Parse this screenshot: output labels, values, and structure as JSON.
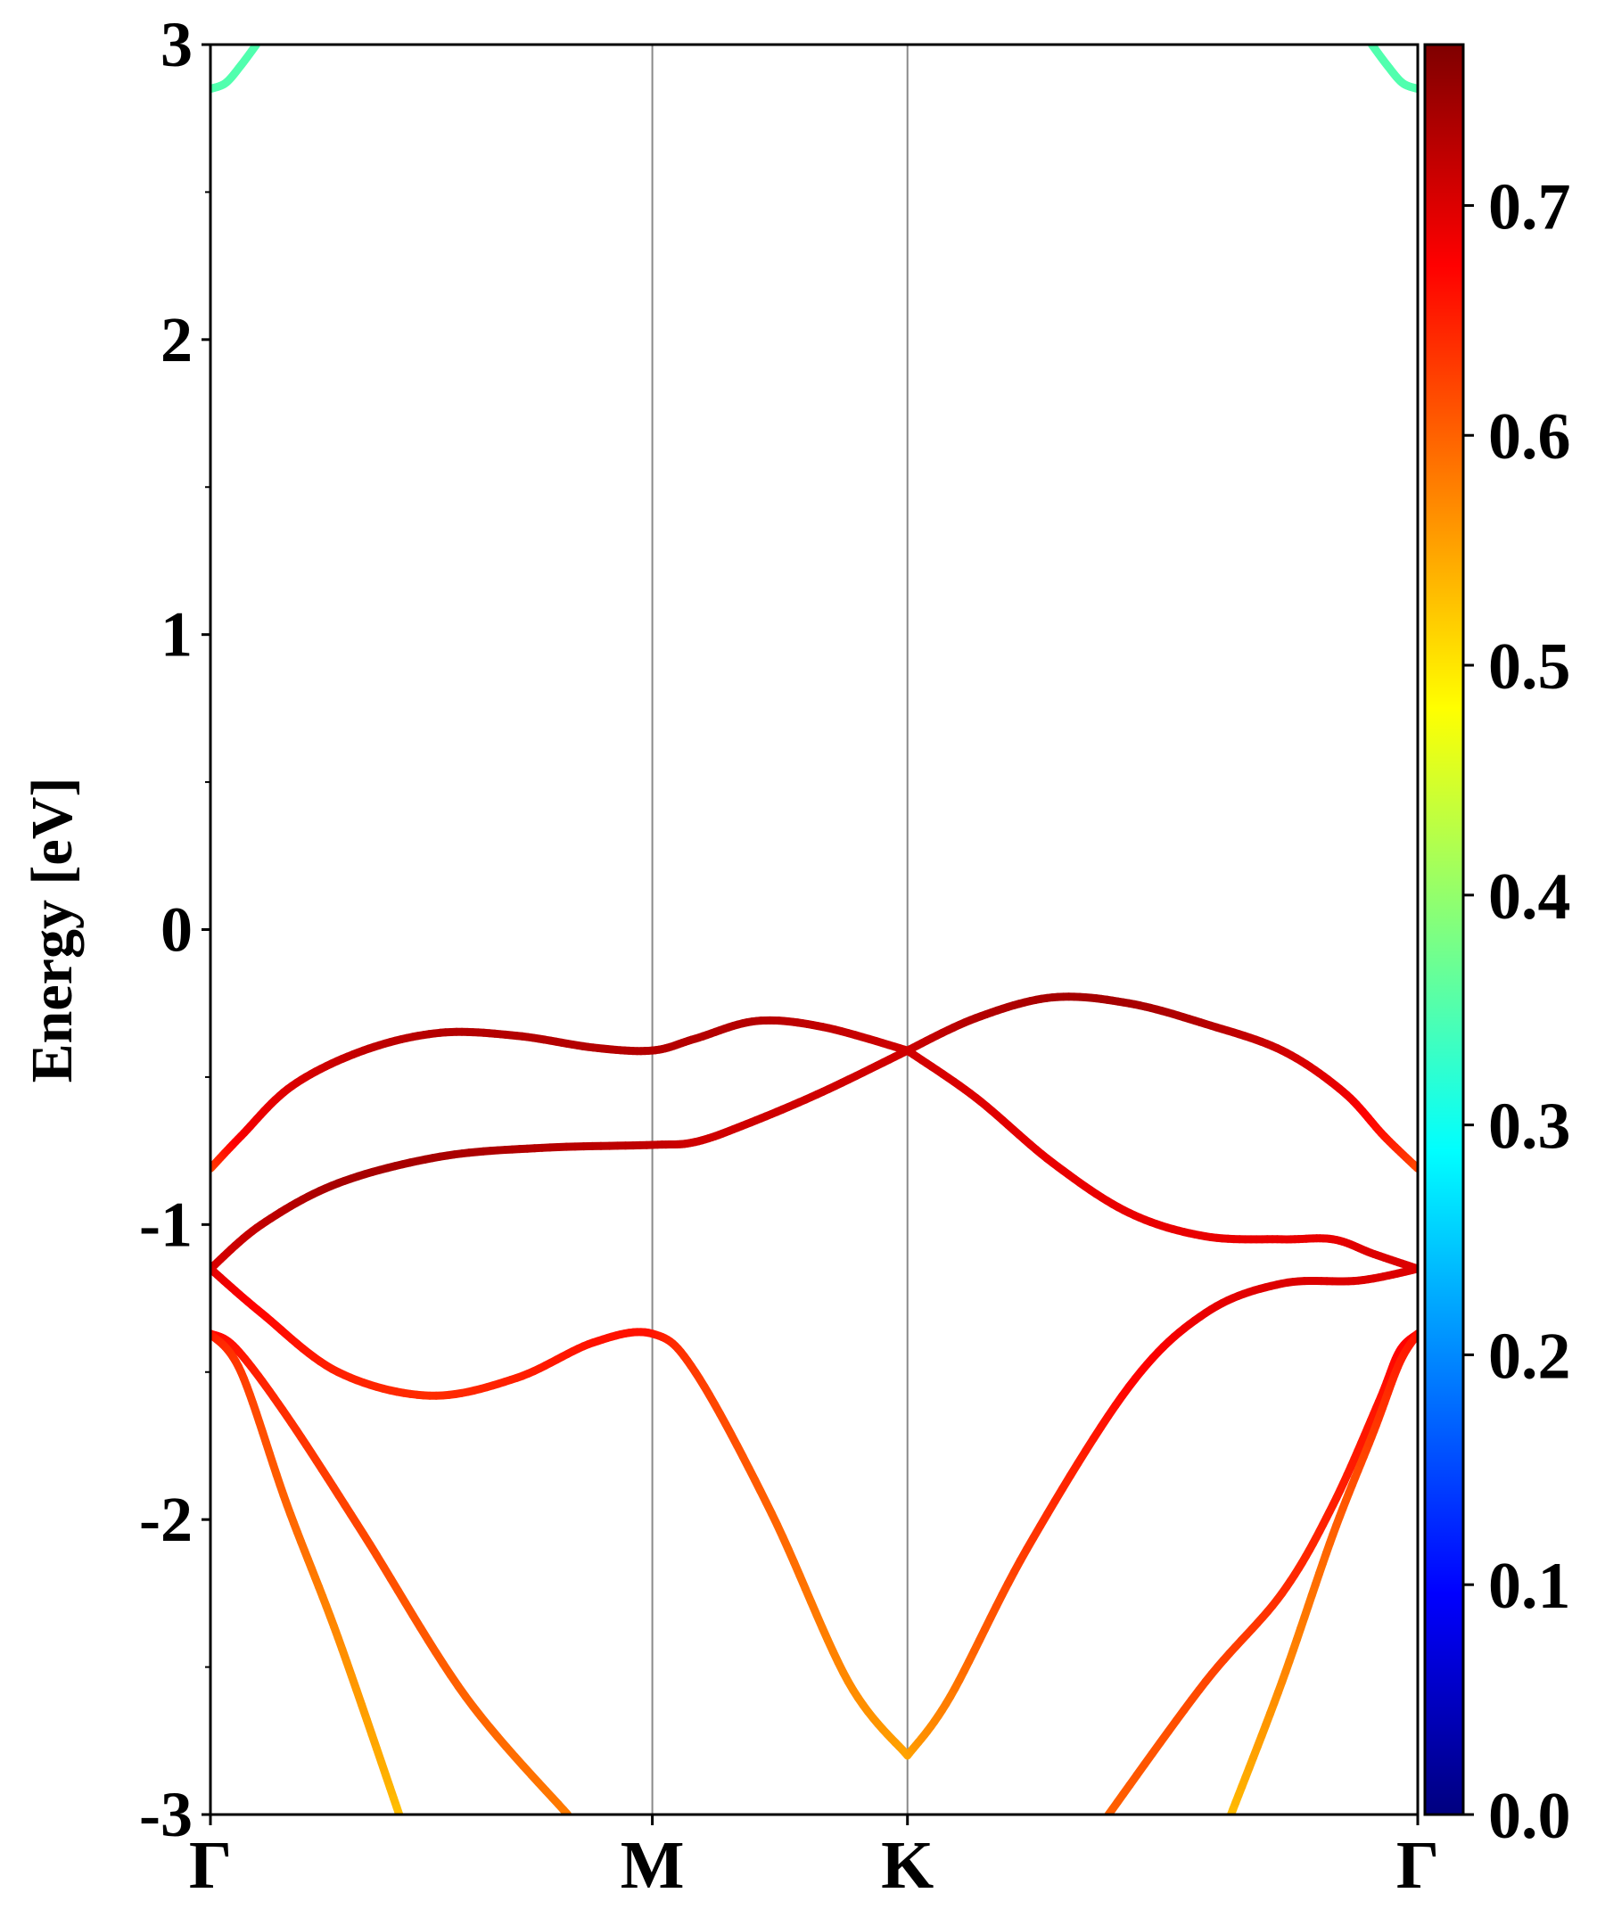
{
  "chart_data": {
    "type": "line",
    "title": "",
    "xlabel": "",
    "ylabel": "Energy [eV]",
    "ylim": [
      -3,
      3
    ],
    "yticks": [
      "3",
      "2",
      "1",
      "0",
      "-1",
      "-2",
      "-3"
    ],
    "yticks_values": [
      3,
      2,
      1,
      0,
      -1,
      -2,
      -3
    ],
    "kpath": {
      "labels": [
        "Γ",
        "M",
        "K",
        "Γ"
      ],
      "positions": [
        0,
        0.866,
        1.366,
        2.366
      ]
    },
    "colorbar": {
      "colormap": "jet",
      "range": [
        0,
        0.77
      ],
      "ticks": [
        "0.0",
        "0.1",
        "0.2",
        "0.3",
        "0.4",
        "0.5",
        "0.6",
        "0.7"
      ],
      "tick_values": [
        0,
        0.1,
        0.2,
        0.3,
        0.4,
        0.5,
        0.6,
        0.7
      ]
    },
    "series": [
      {
        "values": [
          [
            0,
            -0.81
          ],
          [
            0.06,
            -0.7
          ],
          [
            0.16,
            -0.53
          ],
          [
            0.3,
            -0.41
          ],
          [
            0.45,
            -0.35
          ],
          [
            0.6,
            -0.36
          ],
          [
            0.75,
            -0.4
          ],
          [
            0.866,
            -0.41
          ],
          [
            0.95,
            -0.37
          ],
          [
            1.07,
            -0.31
          ],
          [
            1.2,
            -0.33
          ],
          [
            1.366,
            -0.41
          ]
        ],
        "weights": [
          0.62,
          0.68,
          0.7,
          0.72,
          0.73,
          0.73,
          0.73,
          0.73,
          0.73,
          0.73,
          0.72,
          0.71
        ]
      },
      {
        "values": [
          [
            1.366,
            -0.41
          ],
          [
            1.5,
            -0.3
          ],
          [
            1.65,
            -0.23
          ],
          [
            1.8,
            -0.25
          ],
          [
            1.95,
            -0.32
          ],
          [
            2.1,
            -0.41
          ],
          [
            2.22,
            -0.55
          ],
          [
            2.3,
            -0.7
          ],
          [
            2.366,
            -0.81
          ]
        ],
        "weights": [
          0.71,
          0.73,
          0.74,
          0.74,
          0.73,
          0.71,
          0.69,
          0.66,
          0.62
        ]
      },
      {
        "values": [
          [
            0,
            -1.15
          ],
          [
            0.1,
            -1.0
          ],
          [
            0.25,
            -0.86
          ],
          [
            0.45,
            -0.77
          ],
          [
            0.65,
            -0.74
          ],
          [
            0.866,
            -0.73
          ],
          [
            0.95,
            -0.72
          ],
          [
            1.05,
            -0.66
          ],
          [
            1.2,
            -0.55
          ],
          [
            1.366,
            -0.41
          ]
        ],
        "weights": [
          0.7,
          0.72,
          0.74,
          0.74,
          0.73,
          0.72,
          0.71,
          0.71,
          0.71,
          0.71
        ]
      },
      {
        "values": [
          [
            1.366,
            -0.41
          ],
          [
            1.5,
            -0.57
          ],
          [
            1.65,
            -0.79
          ],
          [
            1.8,
            -0.96
          ],
          [
            1.95,
            -1.04
          ],
          [
            2.1,
            -1.05
          ],
          [
            2.2,
            -1.05
          ],
          [
            2.28,
            -1.1
          ],
          [
            2.366,
            -1.15
          ]
        ],
        "weights": [
          0.71,
          0.7,
          0.69,
          0.69,
          0.69,
          0.69,
          0.69,
          0.7,
          0.7
        ]
      },
      {
        "values": [
          [
            0,
            -1.15
          ],
          [
            0.1,
            -1.3
          ],
          [
            0.25,
            -1.5
          ],
          [
            0.43,
            -1.58
          ],
          [
            0.6,
            -1.52
          ],
          [
            0.75,
            -1.4
          ],
          [
            0.866,
            -1.37
          ],
          [
            0.95,
            -1.5
          ],
          [
            1.1,
            -1.98
          ],
          [
            1.25,
            -2.55
          ],
          [
            1.366,
            -2.8
          ]
        ],
        "weights": [
          0.7,
          0.67,
          0.65,
          0.64,
          0.65,
          0.66,
          0.66,
          0.63,
          0.6,
          0.57,
          0.55
        ]
      },
      {
        "values": [
          [
            1.366,
            -2.8
          ],
          [
            1.45,
            -2.6
          ],
          [
            1.6,
            -2.1
          ],
          [
            1.8,
            -1.55
          ],
          [
            1.95,
            -1.3
          ],
          [
            2.1,
            -1.2
          ],
          [
            2.25,
            -1.19
          ],
          [
            2.366,
            -1.15
          ]
        ],
        "weights": [
          0.55,
          0.58,
          0.63,
          0.67,
          0.69,
          0.7,
          0.7,
          0.7
        ]
      },
      {
        "values": [
          [
            0,
            -1.37
          ],
          [
            0.05,
            -1.42
          ],
          [
            0.15,
            -1.65
          ],
          [
            0.3,
            -2.05
          ],
          [
            0.5,
            -2.6
          ],
          [
            0.7,
            -3.0
          ]
        ],
        "weights": [
          0.68,
          0.66,
          0.64,
          0.62,
          0.6,
          0.58
        ]
      },
      {
        "values": [
          [
            0,
            -1.37
          ],
          [
            0.06,
            -1.5
          ],
          [
            0.15,
            -1.95
          ],
          [
            0.25,
            -2.4
          ],
          [
            0.37,
            -3.0
          ]
        ],
        "weights": [
          0.66,
          0.63,
          0.6,
          0.57,
          0.53
        ]
      },
      {
        "values": [
          [
            1.76,
            -3.0
          ],
          [
            1.95,
            -2.55
          ],
          [
            2.1,
            -2.25
          ],
          [
            2.2,
            -1.95
          ],
          [
            2.29,
            -1.6
          ],
          [
            2.33,
            -1.43
          ],
          [
            2.366,
            -1.37
          ]
        ],
        "weights": [
          0.6,
          0.62,
          0.64,
          0.65,
          0.66,
          0.67,
          0.68
        ]
      },
      {
        "values": [
          [
            2.0,
            -3.0
          ],
          [
            2.1,
            -2.55
          ],
          [
            2.2,
            -2.05
          ],
          [
            2.28,
            -1.7
          ],
          [
            2.33,
            -1.47
          ],
          [
            2.366,
            -1.37
          ]
        ],
        "weights": [
          0.53,
          0.57,
          0.6,
          0.63,
          0.65,
          0.66
        ]
      },
      {
        "values": [
          [
            0,
            2.85
          ],
          [
            0.03,
            2.87
          ],
          [
            0.06,
            2.93
          ],
          [
            0.09,
            3.0
          ]
        ],
        "weights": [
          0.35,
          0.35,
          0.35,
          0.35
        ]
      },
      {
        "values": [
          [
            2.276,
            3.0
          ],
          [
            2.306,
            2.93
          ],
          [
            2.336,
            2.87
          ],
          [
            2.366,
            2.85
          ]
        ],
        "weights": [
          0.35,
          0.35,
          0.35,
          0.35
        ]
      }
    ]
  }
}
